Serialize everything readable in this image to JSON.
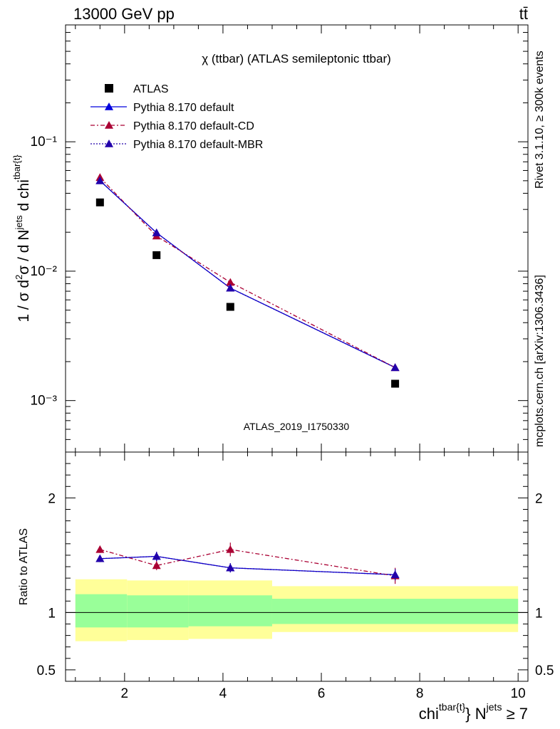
{
  "header": {
    "left": "13000 GeV pp",
    "right": "tt̄"
  },
  "side_labels": {
    "rivet": "Rivet 3.1.10, ≥ 300k events",
    "mcplots": "mcplots.cern.ch [arXiv:1306.3436]"
  },
  "chart_data": [
    {
      "type": "scatter",
      "panel": "main",
      "title": "χ (ttbar) (ATLAS semileptonic ttbar)",
      "watermark": "ATLAS_2019_I1750330",
      "ylabel": "1 / σ d²σ / d N^jets d chi^tbar{t}",
      "yscale": "log",
      "ylim": [
        0.0004,
        0.8
      ],
      "xlim": [
        0.8,
        10.2
      ],
      "x_ticks": [
        "2",
        "4",
        "6",
        "8",
        "10"
      ],
      "y_tick_labels": [
        "10⁻³",
        "10⁻²",
        "10⁻¹"
      ],
      "legend_position": "top-left",
      "series": [
        {
          "name": "ATLAS",
          "marker": "square",
          "color": "#000000",
          "x": [
            1.5,
            2.65,
            4.15,
            7.5
          ],
          "y": [
            0.034,
            0.0133,
            0.0053,
            0.00135
          ]
        },
        {
          "name": "Pythia 8.170 default",
          "marker": "triangle",
          "line": "solid",
          "color": "#0000dd",
          "x": [
            1.5,
            2.65,
            4.15,
            7.5
          ],
          "y": [
            0.05,
            0.0198,
            0.0074,
            0.0018
          ]
        },
        {
          "name": "Pythia 8.170 default-CD",
          "marker": "triangle",
          "line": "dashdot",
          "color": "#aa0033",
          "x": [
            1.5,
            2.65,
            4.15,
            7.5
          ],
          "y": [
            0.053,
            0.0187,
            0.0082,
            0.0018
          ]
        },
        {
          "name": "Pythia 8.170 default-MBR",
          "marker": "triangle",
          "line": "dotted",
          "color": "#2200aa",
          "x": [
            1.5,
            2.65,
            4.15,
            7.5
          ],
          "y": [
            0.05,
            0.0198,
            0.0074,
            0.0018
          ]
        }
      ]
    },
    {
      "type": "scatter",
      "panel": "ratio",
      "ylabel": "Ratio to ATLAS",
      "xlabel": "chi^tbar{t} N^jets ≥ 7",
      "ylim": [
        0.4,
        2.4
      ],
      "xlim": [
        0.8,
        10.2
      ],
      "x_ticks": [
        "2",
        "4",
        "6",
        "8",
        "10"
      ],
      "y_ticks": [
        "0.5",
        "1",
        "2"
      ],
      "reference_line": 1,
      "bands": [
        {
          "x_from": 1.0,
          "x_to": 2.05,
          "green": [
            0.87,
            1.16
          ],
          "yellow": [
            0.75,
            1.29
          ]
        },
        {
          "x_from": 2.05,
          "x_to": 3.3,
          "green": [
            0.87,
            1.15
          ],
          "yellow": [
            0.76,
            1.28
          ]
        },
        {
          "x_from": 3.3,
          "x_to": 5.0,
          "green": [
            0.88,
            1.15
          ],
          "yellow": [
            0.77,
            1.28
          ]
        },
        {
          "x_from": 5.0,
          "x_to": 10.0,
          "green": [
            0.9,
            1.12
          ],
          "yellow": [
            0.83,
            1.23
          ]
        }
      ],
      "band_colors": {
        "green": "#99ff99",
        "yellow": "#ffff99"
      },
      "series": [
        {
          "name": "Pythia 8.170 default",
          "marker": "triangle",
          "line": "solid",
          "color": "#0000dd",
          "x": [
            1.5,
            2.65,
            4.15,
            7.5
          ],
          "y": [
            1.47,
            1.49,
            1.39,
            1.33
          ],
          "err": [
            0.03,
            0.04,
            0.04,
            0.05
          ]
        },
        {
          "name": "Pythia 8.170 default-CD",
          "marker": "triangle",
          "line": "dashdot",
          "color": "#aa0033",
          "x": [
            1.5,
            2.65,
            4.15,
            7.5
          ],
          "y": [
            1.55,
            1.41,
            1.55,
            1.32
          ],
          "err": [
            0.03,
            0.04,
            0.06,
            0.07
          ]
        },
        {
          "name": "Pythia 8.170 default-MBR",
          "marker": "triangle",
          "line": "dotted",
          "color": "#2200aa",
          "x": [
            1.5,
            2.65,
            4.15,
            7.5
          ],
          "y": [
            1.47,
            1.49,
            1.39,
            1.33
          ],
          "err": [
            0.03,
            0.04,
            0.04,
            0.05
          ]
        }
      ]
    }
  ]
}
